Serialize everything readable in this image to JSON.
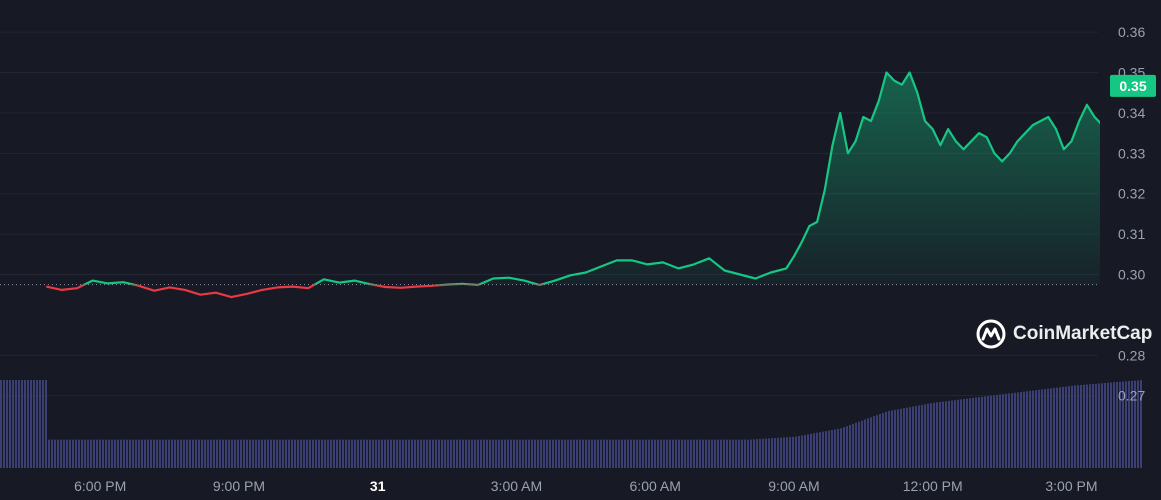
{
  "chart_data": {
    "type": "line",
    "xlabel": "",
    "ylabel": "",
    "x_tick_labels": [
      "6:00 PM",
      "9:00 PM",
      "31",
      "3:00 AM",
      "6:00 AM",
      "9:00 AM",
      "12:00 PM",
      "3:00 PM"
    ],
    "y_tick_labels": [
      "0.27",
      "0.28",
      "0.30",
      "0.31",
      "0.32",
      "0.33",
      "0.34",
      "0.35",
      "0.36"
    ],
    "ylim": [
      0.262,
      0.3635
    ],
    "reference_price": 0.2975,
    "current_price_label": "0.35",
    "current_price": 0.3467,
    "grid": true,
    "colors": {
      "up": "#16c784",
      "down": "#ea3943",
      "volume": "#3b3f73",
      "badge": "#16c784"
    },
    "series": [
      {
        "x": [
          "2023-10-30 16:50",
          "2023-10-30 17:10",
          "2023-10-30 17:30",
          "2023-10-30 17:50",
          "2023-10-30 18:10",
          "2023-10-30 18:30",
          "2023-10-30 18:50",
          "2023-10-30 19:10",
          "2023-10-30 19:30",
          "2023-10-30 19:50",
          "2023-10-30 20:10",
          "2023-10-30 20:30",
          "2023-10-30 20:50",
          "2023-10-30 21:10",
          "2023-10-30 21:30",
          "2023-10-30 21:50",
          "2023-10-30 22:10",
          "2023-10-30 22:30",
          "2023-10-30 22:50",
          "2023-10-30 23:10",
          "2023-10-30 23:30",
          "2023-10-30 23:50",
          "2023-10-31 00:10",
          "2023-10-31 00:30",
          "2023-10-31 00:50",
          "2023-10-31 01:10",
          "2023-10-31 01:30",
          "2023-10-31 01:50",
          "2023-10-31 02:10",
          "2023-10-31 02:30",
          "2023-10-31 02:50",
          "2023-10-31 03:10",
          "2023-10-31 03:30",
          "2023-10-31 03:50",
          "2023-10-31 04:10",
          "2023-10-31 04:30",
          "2023-10-31 04:50",
          "2023-10-31 05:10",
          "2023-10-31 05:30",
          "2023-10-31 05:50",
          "2023-10-31 06:10",
          "2023-10-31 06:30",
          "2023-10-31 06:50",
          "2023-10-31 07:10",
          "2023-10-31 07:30",
          "2023-10-31 07:50",
          "2023-10-31 08:10",
          "2023-10-31 08:30",
          "2023-10-31 08:50",
          "2023-10-31 09:00",
          "2023-10-31 09:10",
          "2023-10-31 09:20",
          "2023-10-31 09:30",
          "2023-10-31 09:40",
          "2023-10-31 09:50",
          "2023-10-31 10:00",
          "2023-10-31 10:10",
          "2023-10-31 10:20",
          "2023-10-31 10:30",
          "2023-10-31 10:40",
          "2023-10-31 10:50",
          "2023-10-31 11:00",
          "2023-10-31 11:10",
          "2023-10-31 11:20",
          "2023-10-31 11:30",
          "2023-10-31 11:40",
          "2023-10-31 11:50",
          "2023-10-31 12:00",
          "2023-10-31 12:10",
          "2023-10-31 12:20",
          "2023-10-31 12:30",
          "2023-10-31 12:40",
          "2023-10-31 12:50",
          "2023-10-31 13:00",
          "2023-10-31 13:10",
          "2023-10-31 13:20",
          "2023-10-31 13:30",
          "2023-10-31 13:40",
          "2023-10-31 13:50",
          "2023-10-31 14:00",
          "2023-10-31 14:10",
          "2023-10-31 14:20",
          "2023-10-31 14:30",
          "2023-10-31 14:40",
          "2023-10-31 14:50",
          "2023-10-31 15:00",
          "2023-10-31 15:10",
          "2023-10-31 15:20",
          "2023-10-31 15:30",
          "2023-10-31 15:40",
          "2023-10-31 15:50",
          "2023-10-31 16:00",
          "2023-10-31 16:10",
          "2023-10-31 16:20",
          "2023-10-31 16:30"
        ],
        "values": [
          0.297,
          0.2962,
          0.2966,
          0.2985,
          0.2978,
          0.2981,
          0.2972,
          0.296,
          0.2968,
          0.2962,
          0.295,
          0.2955,
          0.2944,
          0.2952,
          0.2962,
          0.2968,
          0.297,
          0.2966,
          0.2988,
          0.298,
          0.2985,
          0.2976,
          0.2969,
          0.2967,
          0.297,
          0.2972,
          0.2975,
          0.2977,
          0.2974,
          0.299,
          0.2992,
          0.2985,
          0.2974,
          0.2985,
          0.2998,
          0.3005,
          0.302,
          0.3035,
          0.3035,
          0.3025,
          0.303,
          0.3015,
          0.3025,
          0.304,
          0.301,
          0.3,
          0.299,
          0.3005,
          0.3015,
          0.3045,
          0.308,
          0.312,
          0.313,
          0.321,
          0.332,
          0.34,
          0.33,
          0.333,
          0.339,
          0.338,
          0.343,
          0.35,
          0.348,
          0.347,
          0.35,
          0.345,
          0.338,
          0.336,
          0.332,
          0.336,
          0.333,
          0.331,
          0.333,
          0.335,
          0.334,
          0.33,
          0.328,
          0.33,
          0.333,
          0.335,
          0.337,
          0.338,
          0.339,
          0.336,
          0.331,
          0.333,
          0.338,
          0.342,
          0.339,
          0.337,
          0.338,
          0.34,
          0.337,
          0.338,
          0.3467
        ]
      }
    ],
    "volume": {
      "x": [
        "2023-10-30 16:50",
        "2023-10-30 21:00",
        "2023-10-31 01:00",
        "2023-10-31 05:00",
        "2023-10-31 08:00",
        "2023-10-31 09:00",
        "2023-10-31 10:00",
        "2023-10-31 11:00",
        "2023-10-31 12:00",
        "2023-10-31 13:00",
        "2023-10-31 14:00",
        "2023-10-31 15:00",
        "2023-10-31 16:30"
      ],
      "values": [
        1.0,
        1.0,
        1.0,
        1.0,
        1.0,
        1.1,
        1.4,
        2.0,
        2.3,
        2.5,
        2.7,
        2.9,
        3.1
      ]
    }
  }
}
